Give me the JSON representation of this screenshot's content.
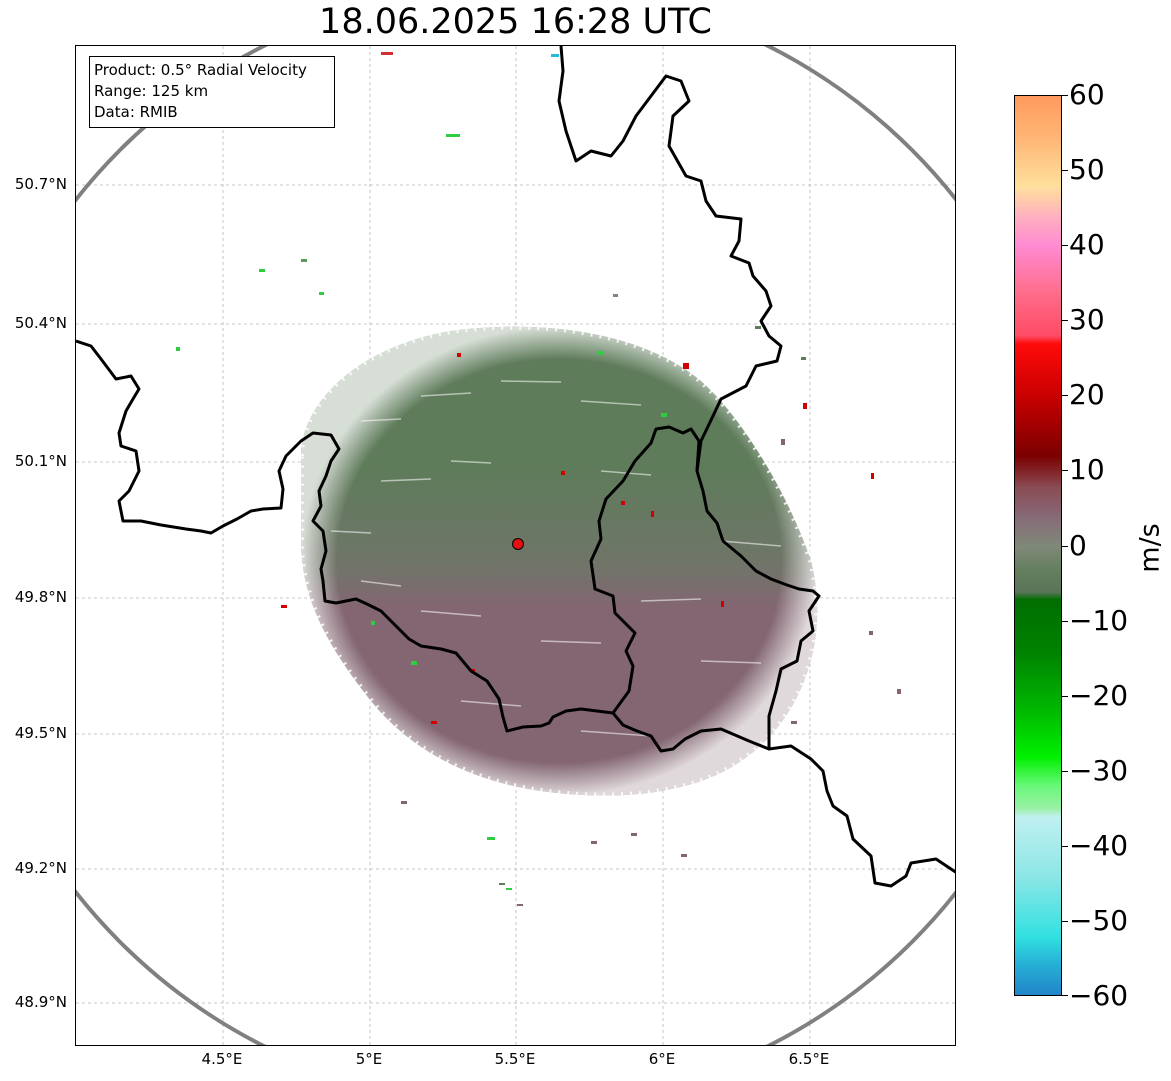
{
  "title": "18.06.2025 16:28 UTC",
  "info": {
    "product": "Product: 0.5° Radial Velocity",
    "range": "Range: 125 km",
    "source": "Data: RMIB"
  },
  "axes": {
    "lat_ticks": [
      "50.7°N",
      "50.4°N",
      "50.1°N",
      "49.8°N",
      "49.5°N",
      "49.2°N",
      "48.9°N"
    ],
    "lon_ticks": [
      "4.5°E",
      "5°E",
      "5.5°E",
      "6°E",
      "6.5°E"
    ]
  },
  "radar": {
    "lon": 5.5,
    "lat": 49.91,
    "range_km": 125
  },
  "colorbar": {
    "unit": "m/s",
    "min": -60,
    "max": 60,
    "ticks": [
      "60",
      "50",
      "40",
      "30",
      "20",
      "10",
      "0",
      "−10",
      "−20",
      "−30",
      "−40",
      "−50",
      "−60"
    ],
    "stops": [
      {
        "v": 60,
        "color": "#ff9a5c"
      },
      {
        "v": 54,
        "color": "#ffb878"
      },
      {
        "v": 48,
        "color": "#ffe09c"
      },
      {
        "v": 44,
        "color": "#ffb0c0"
      },
      {
        "v": 40,
        "color": "#ff8ad2"
      },
      {
        "v": 34,
        "color": "#ff6e8c"
      },
      {
        "v": 28,
        "color": "#ff4a64"
      },
      {
        "v": 27,
        "color": "#ff0a0a"
      },
      {
        "v": 20,
        "color": "#c80000"
      },
      {
        "v": 12,
        "color": "#7a0000"
      },
      {
        "v": 8,
        "color": "#8a4a52"
      },
      {
        "v": 4,
        "color": "#876a78"
      },
      {
        "v": 0,
        "color": "#7f8878"
      },
      {
        "v": -3,
        "color": "#647f5e"
      },
      {
        "v": -6,
        "color": "#5a7458"
      },
      {
        "v": -7,
        "color": "#006e00"
      },
      {
        "v": -14,
        "color": "#008200"
      },
      {
        "v": -22,
        "color": "#00ba00"
      },
      {
        "v": -28,
        "color": "#00f000"
      },
      {
        "v": -32,
        "color": "#6cf87c"
      },
      {
        "v": -35,
        "color": "#9cf0a8"
      },
      {
        "v": -36,
        "color": "#c0f0f0"
      },
      {
        "v": -44,
        "color": "#8ce6e6"
      },
      {
        "v": -52,
        "color": "#30e0e0"
      },
      {
        "v": -55,
        "color": "#28b8d8"
      },
      {
        "v": -60,
        "color": "#2080c8"
      }
    ]
  },
  "colors": {
    "inbound_green": "#5e7b5a",
    "outbound_mauve": "#836672",
    "border": "#000000",
    "range_ring": "#808080",
    "radar_site": "#e31010"
  }
}
